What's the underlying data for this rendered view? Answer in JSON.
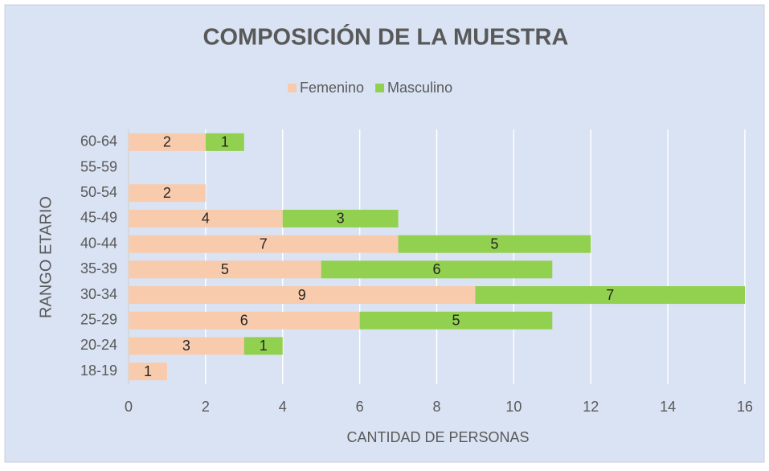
{
  "chart_data": {
    "type": "stacked_barh",
    "title": "COMPOSICIÓN DE LA MUESTRA",
    "xlabel": "CANTIDAD DE PERSONAS",
    "ylabel": "RANGO ETARIO",
    "categories": [
      "60-64",
      "55-59",
      "50-54",
      "45-49",
      "40-44",
      "35-39",
      "30-34",
      "25-29",
      "20-24",
      "18-19"
    ],
    "series": [
      {
        "name": "Femenino",
        "color": "#f8cbad",
        "values": [
          2,
          null,
          2,
          4,
          7,
          5,
          9,
          6,
          3,
          1
        ]
      },
      {
        "name": "Masculino",
        "color": "#92d050",
        "values": [
          1,
          null,
          null,
          3,
          5,
          6,
          7,
          5,
          1,
          null
        ]
      }
    ],
    "xlim": [
      0,
      16
    ],
    "xticks": [
      0,
      2,
      4,
      6,
      8,
      10,
      12,
      14,
      16
    ],
    "grid": true,
    "legend": "top"
  }
}
